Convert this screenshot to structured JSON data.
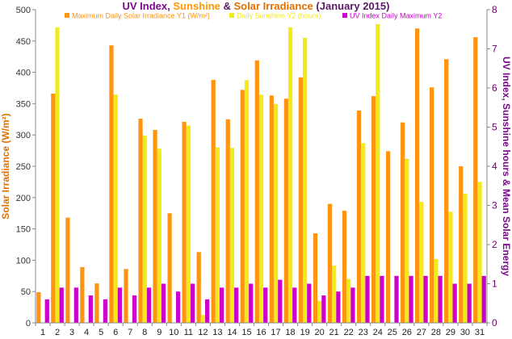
{
  "chart_data": {
    "type": "bar",
    "title_parts": [
      {
        "text": "UV Index",
        "color": "#7a0a8c"
      },
      {
        "text": ", ",
        "color": "#5a1a66"
      },
      {
        "text": "Sunshine",
        "color": "#ff9900"
      },
      {
        "text": " & ",
        "color": "#5a1a66"
      },
      {
        "text": "Solar Irradiance",
        "color": "#e07000"
      },
      {
        "text": " (January 2015)",
        "color": "#5a1a66"
      }
    ],
    "ylabel": "Solar Irradiance (W/m²)",
    "y2label": "UV Index, Sunshine hours & Mean Solar Energy",
    "ylim": [
      0,
      500
    ],
    "y2lim": [
      0,
      8
    ],
    "yticks": [
      "0",
      "50",
      "100",
      "150",
      "200",
      "250",
      "300",
      "350",
      "400",
      "450",
      "500"
    ],
    "y2ticks": [
      "0",
      "1",
      "2",
      "3",
      "4",
      "5",
      "6",
      "7",
      "8"
    ],
    "categories": [
      "1",
      "2",
      "3",
      "4",
      "5",
      "6",
      "7",
      "8",
      "9",
      "10",
      "11",
      "12",
      "13",
      "14",
      "15",
      "16",
      "17",
      "18",
      "19",
      "20",
      "21",
      "22",
      "23",
      "24",
      "25",
      "26",
      "27",
      "28",
      "29",
      "30",
      "31"
    ],
    "series": [
      {
        "name": "Maximum Daily Solar Irradiance Y1 (W/m²)",
        "axis": "left",
        "color": "#ff9410",
        "values": [
          49,
          366,
          168,
          89,
          63,
          443,
          86,
          326,
          308,
          175,
          321,
          113,
          388,
          325,
          372,
          419,
          363,
          358,
          392,
          143,
          190,
          179,
          339,
          362,
          274,
          320,
          470,
          376,
          421,
          250,
          456
        ]
      },
      {
        "name": "Daily Sunshine Y2 (hours)",
        "axis": "right",
        "color": "#f2ea1a",
        "values": [
          0,
          7.55,
          0,
          0,
          0,
          5.83,
          0,
          4.78,
          4.45,
          0,
          5.04,
          0.2,
          4.48,
          4.47,
          6.2,
          5.83,
          5.59,
          7.55,
          7.28,
          0.56,
          1.46,
          1.12,
          4.59,
          7.63,
          0,
          4.19,
          3.09,
          1.63,
          2.84,
          3.3,
          3.6
        ]
      },
      {
        "name": "UV Index Daily Maximum Y2",
        "axis": "right",
        "color": "#cc00cc",
        "values": [
          0.6,
          0.9,
          0.9,
          0.7,
          0.6,
          0.9,
          0.7,
          0.9,
          1.0,
          0.8,
          1.0,
          0.6,
          0.9,
          0.9,
          1.0,
          0.9,
          1.1,
          0.9,
          1.0,
          0.7,
          0.8,
          0.9,
          1.2,
          1.2,
          1.2,
          1.2,
          1.2,
          1.2,
          1.0,
          1.0,
          1.2
        ]
      }
    ],
    "legend_position": "top-center",
    "grid": false
  }
}
